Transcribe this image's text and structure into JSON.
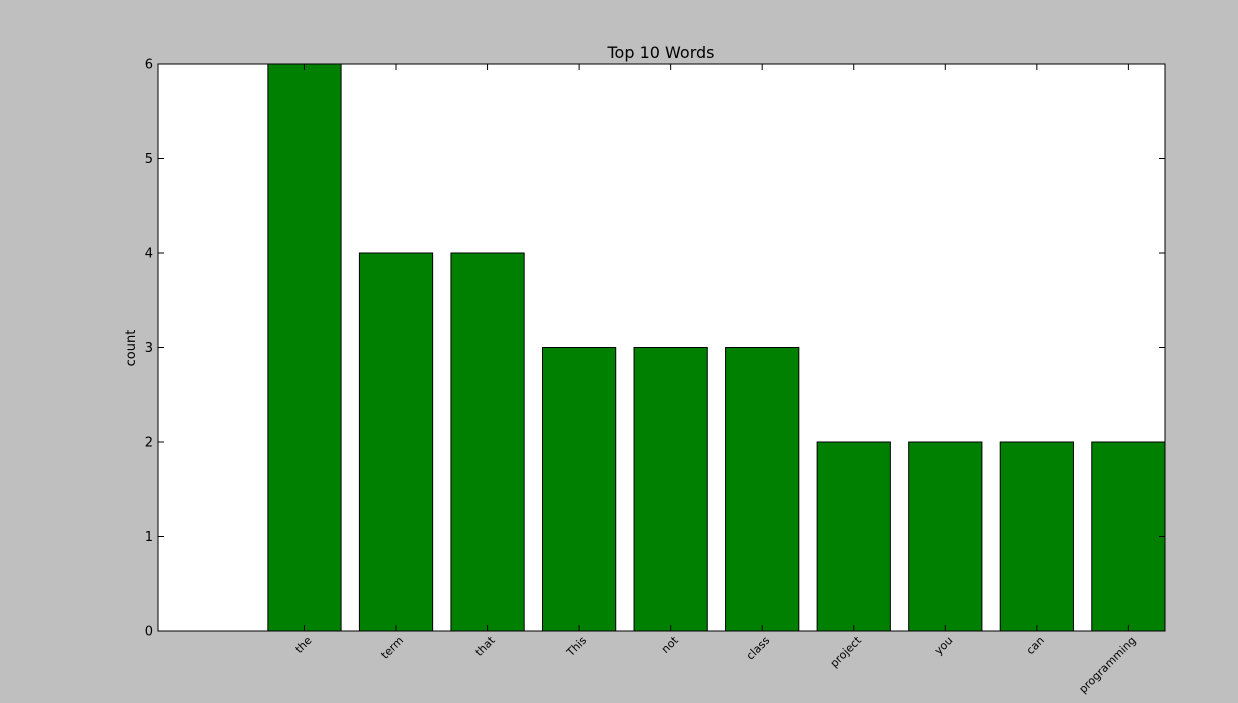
{
  "chart_data": {
    "type": "bar",
    "title": "Top 10 Words",
    "xlabel": "",
    "ylabel": "count",
    "categories": [
      "the",
      "term",
      "that",
      "This",
      "not",
      "class",
      "project",
      "you",
      "can",
      "programming"
    ],
    "values": [
      6,
      4,
      4,
      3,
      3,
      3,
      2,
      2,
      2,
      2
    ],
    "ylim": [
      0,
      6
    ],
    "yticks": [
      "0",
      "1",
      "2",
      "3",
      "4",
      "5",
      "6"
    ],
    "grid": false,
    "legend": "none",
    "colors": {
      "bar": "#008000",
      "bar_edge": "#000000",
      "figure_background": "#bfbfbf",
      "axes_background": "#ffffff"
    }
  }
}
